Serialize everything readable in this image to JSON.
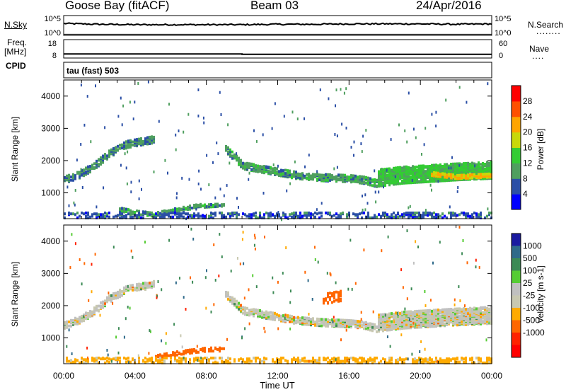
{
  "header": {
    "station": "Goose Bay (fitACF)",
    "beam": "Beam 03",
    "date": "24/Apr/2016"
  },
  "labels": {
    "nsky": "N.Sky",
    "freq": "Freq.",
    "freq_unit": "[MHz]",
    "cpid": "CPID",
    "nsearch": "N.Search",
    "nave": "Nave",
    "tau": "tau (fast) 503",
    "xlabel": "Time UT"
  },
  "colors": {
    "power_scale": [
      "#0000ff",
      "#2b4fa6",
      "#4f9f5f",
      "#33cc33",
      "#c8d80a",
      "#ffa500",
      "#ff5000",
      "#ff0000"
    ],
    "velocity_scale": [
      "#1a1aa0",
      "#2f6a8a",
      "#3c8a55",
      "#55cc33",
      "#c0c0c0",
      "#c8c8b0",
      "#ffaa00",
      "#ff6600",
      "#ff2200",
      "#ff0000"
    ],
    "ground_scatter": "#c0c0c0"
  },
  "chart_data": [
    {
      "name": "noise_sky_search",
      "type": "line",
      "ylabel_left": "N.Sky",
      "ylabel_right": "N.Search",
      "yticks_left": [
        "10^5",
        "10^0"
      ],
      "yticks_right": [
        "10^5",
        "10^0"
      ],
      "x_hours": [
        0,
        1,
        2,
        4,
        6,
        8,
        10,
        12,
        14,
        16,
        18,
        20,
        22,
        24
      ],
      "values_log10": [
        3.0,
        2.9,
        2.8,
        2.7,
        2.7,
        2.7,
        2.7,
        2.8,
        2.8,
        2.9,
        2.9,
        2.9,
        2.8,
        2.9
      ]
    },
    {
      "name": "freq_nave",
      "type": "line",
      "ylabel_left": "Freq. [MHz]",
      "ylabel_right": "Nave",
      "yticks_left": [
        "18",
        "8"
      ],
      "yticks_right": [
        "60",
        "0"
      ],
      "freq_segments": [
        {
          "x0": 0,
          "x1": 10,
          "value": 10.2
        },
        {
          "x0": 10,
          "x1": 24,
          "value": 10.0
        }
      ]
    },
    {
      "name": "power",
      "type": "heatmap",
      "ylabel": "Slant Range [km]",
      "xlabel": "Time UT",
      "ylim": [
        200,
        4500
      ],
      "yticks": [
        1000,
        2000,
        3000,
        4000
      ],
      "xticks": [
        "00:00",
        "04:00",
        "08:00",
        "12:00",
        "16:00",
        "20:00",
        "00:00"
      ],
      "xlim_hours": [
        0,
        24
      ],
      "colorbar": {
        "label": "Power [dB]",
        "ticks": [
          4,
          8,
          12,
          16,
          20,
          24,
          28
        ],
        "range": [
          0,
          32
        ]
      },
      "features": [
        {
          "t": [
            0.0,
            0.8,
            1.6,
            2.5,
            3.5,
            4.5,
            5.0
          ],
          "r": [
            1400,
            1550,
            1800,
            2200,
            2500,
            2600,
            2650
          ],
          "width": 200,
          "value": 9,
          "density": 0.55
        },
        {
          "t": [
            9.0,
            10.0,
            11.5,
            13.0,
            14.5,
            16.0,
            16.8,
            17.5
          ],
          "r": [
            2400,
            1850,
            1700,
            1550,
            1480,
            1450,
            1400,
            1300
          ],
          "width": 220,
          "value": 10,
          "density": 0.6
        },
        {
          "t": [
            17.5,
            19.0,
            20.5,
            22.0,
            24.0
          ],
          "r": [
            1450,
            1550,
            1600,
            1650,
            1700
          ],
          "width": 500,
          "value": 13,
          "density": 0.75
        },
        {
          "t": [
            20.5,
            22.0,
            24.0
          ],
          "r": [
            1600,
            1500,
            1550
          ],
          "width": 120,
          "value": 21,
          "density": 0.8
        },
        {
          "t": [
            3.0,
            4.0,
            5.0,
            6.0,
            7.5,
            9.0
          ],
          "r": [
            500,
            400,
            330,
            450,
            600,
            650
          ],
          "width": 120,
          "value": 10,
          "density": 0.5
        },
        {
          "t": [
            0.0,
            24.0
          ],
          "r": [
            300,
            300
          ],
          "width": 150,
          "value": 6,
          "density": 0.3
        }
      ]
    },
    {
      "name": "velocity",
      "type": "heatmap",
      "ylabel": "Slant Range [km]",
      "xlabel": "Time UT",
      "ylim": [
        200,
        4500
      ],
      "yticks": [
        1000,
        2000,
        3000,
        4000
      ],
      "xticks": [
        "00:00",
        "04:00",
        "08:00",
        "12:00",
        "16:00",
        "20:00",
        "00:00"
      ],
      "xlim_hours": [
        0,
        24
      ],
      "colorbar": {
        "label": "Velocity [m s-1]",
        "ticks": [
          "1000",
          "500",
          "100",
          "25",
          "-25",
          "-100",
          "-500",
          "-1000"
        ]
      },
      "features": [
        {
          "t": [
            0.0,
            0.8,
            1.6,
            2.5,
            3.5,
            4.5,
            5.0
          ],
          "r": [
            1400,
            1550,
            1800,
            2200,
            2500,
            2600,
            2650
          ],
          "width": 200,
          "value": 0,
          "density": 0.55
        },
        {
          "t": [
            9.0,
            10.0,
            11.5,
            13.0,
            14.5,
            16.0,
            16.8,
            17.5
          ],
          "r": [
            2400,
            1850,
            1700,
            1550,
            1480,
            1450,
            1400,
            1300
          ],
          "width": 220,
          "value": 0,
          "density": 0.6
        },
        {
          "t": [
            17.5,
            19.0,
            20.5,
            22.0,
            24.0
          ],
          "r": [
            1450,
            1550,
            1600,
            1650,
            1700
          ],
          "width": 500,
          "value": 0,
          "density": 0.75
        },
        {
          "t": [
            5.0,
            6.5,
            8.0,
            9.0
          ],
          "r": [
            400,
            550,
            650,
            650
          ],
          "width": 120,
          "value": -300,
          "density": 0.5
        },
        {
          "t": [
            14.5,
            15.5
          ],
          "r": [
            2200,
            2300
          ],
          "width": 300,
          "value": -400,
          "density": 0.35
        },
        {
          "t": [
            0.0,
            24.0
          ],
          "r": [
            300,
            300
          ],
          "width": 150,
          "value": -50,
          "density": 0.3
        }
      ]
    }
  ]
}
